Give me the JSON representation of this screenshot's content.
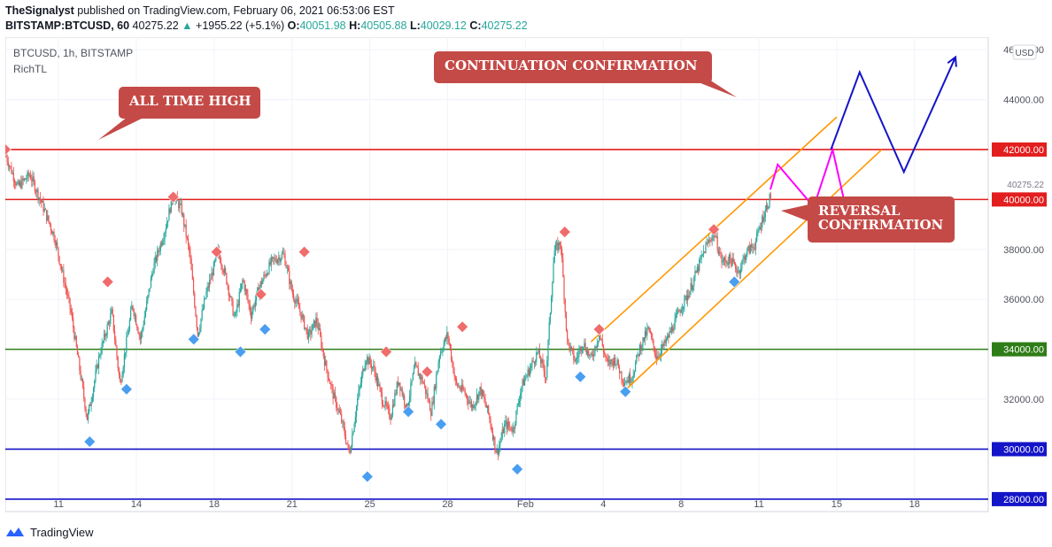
{
  "header": {
    "publisher": "TheSignalyst",
    "published_text": "published on TradingView.com, February 06, 2021 06:53:06 EST",
    "symbol": "BITSTAMP:BTCUSD, 60",
    "last": "40275.22",
    "change": "+1955.22 (+5.1%)",
    "o_label": "O:",
    "o": "40051.98",
    "h_label": "H:",
    "h": "40505.88",
    "l_label": "L:",
    "l": "40029.12",
    "c_label": "C:",
    "c": "40275.22"
  },
  "legend": {
    "symbol": "BTCUSD, 1h, BITSTAMP",
    "indicator": "RichTL"
  },
  "footer": {
    "brand": "TradingView"
  },
  "chart_data": {
    "type": "candlestick",
    "xlabels": [
      "11",
      "14",
      "18",
      "21",
      "25",
      "28",
      "Feb",
      "4",
      "8",
      "11",
      "15",
      "18"
    ],
    "yticks": [
      "28000.00",
      "30000.00",
      "32000.00",
      "34000.00",
      "36000.00",
      "38000.00",
      "40000.00",
      "42000.00",
      "44000.00",
      "46000.00"
    ],
    "ylim": [
      27500,
      46500
    ],
    "currency_label": "USD",
    "last_price_label": "40275.22",
    "levels": [
      {
        "value": 42000,
        "label": "42000.00",
        "color": "#e31e1e"
      },
      {
        "value": 40000,
        "label": "40000.00",
        "color": "#e31e1e"
      },
      {
        "value": 34000,
        "label": "34000.00",
        "color": "#2f7d18"
      },
      {
        "value": 30000,
        "label": "30000.00",
        "color": "#1414c8"
      },
      {
        "value": 28000,
        "label": "28000.00",
        "color": "#1414c8"
      }
    ],
    "price_path": [
      [
        0,
        41800
      ],
      [
        1.5,
        40500
      ],
      [
        3,
        41000
      ],
      [
        4.5,
        39800
      ],
      [
        6,
        38500
      ],
      [
        8,
        35500
      ],
      [
        10,
        31200
      ],
      [
        11.5,
        33800
      ],
      [
        13,
        35500
      ],
      [
        14,
        32600
      ],
      [
        15.5,
        35800
      ],
      [
        16.5,
        34400
      ],
      [
        18,
        37200
      ],
      [
        19.5,
        38800
      ],
      [
        20.5,
        40200
      ],
      [
        21.5,
        39600
      ],
      [
        22.5,
        37800
      ],
      [
        23.5,
        34600
      ],
      [
        24.5,
        36200
      ],
      [
        26,
        37900
      ],
      [
        27,
        36800
      ],
      [
        28,
        35200
      ],
      [
        29,
        36800
      ],
      [
        30,
        35400
      ],
      [
        31,
        36500
      ],
      [
        32.5,
        37500
      ],
      [
        34,
        37800
      ],
      [
        35,
        36300
      ],
      [
        36,
        35500
      ],
      [
        37,
        34500
      ],
      [
        38,
        35200
      ],
      [
        39,
        33500
      ],
      [
        40,
        32200
      ],
      [
        41,
        31200
      ],
      [
        42,
        29800
      ],
      [
        43,
        32000
      ],
      [
        44,
        33700
      ],
      [
        45,
        33200
      ],
      [
        46,
        32000
      ],
      [
        47,
        31300
      ],
      [
        48,
        32800
      ],
      [
        49,
        31600
      ],
      [
        50,
        33300
      ],
      [
        51,
        32700
      ],
      [
        52,
        31500
      ],
      [
        53,
        33800
      ],
      [
        54,
        34600
      ],
      [
        55,
        32600
      ],
      [
        56,
        32300
      ],
      [
        57,
        31700
      ],
      [
        58,
        32400
      ],
      [
        59,
        31400
      ],
      [
        60,
        29800
      ],
      [
        61,
        31000
      ],
      [
        62,
        30800
      ],
      [
        63,
        32500
      ],
      [
        64,
        33200
      ],
      [
        65,
        33900
      ],
      [
        66,
        32900
      ],
      [
        67,
        37900
      ],
      [
        67.8,
        38300
      ],
      [
        68.6,
        34300
      ],
      [
        69.6,
        33500
      ],
      [
        70.5,
        34300
      ],
      [
        71.5,
        33600
      ],
      [
        72.5,
        34600
      ],
      [
        73.5,
        33400
      ],
      [
        74.5,
        33600
      ],
      [
        75.5,
        32700
      ],
      [
        76.5,
        32900
      ],
      [
        77.5,
        34100
      ],
      [
        78.5,
        34800
      ],
      [
        79.5,
        33700
      ],
      [
        80.5,
        34200
      ],
      [
        81.5,
        34900
      ],
      [
        82.5,
        35700
      ],
      [
        83.5,
        36300
      ],
      [
        84.5,
        37200
      ],
      [
        85.5,
        38100
      ],
      [
        86.5,
        38700
      ],
      [
        87.5,
        37500
      ],
      [
        88.5,
        37600
      ],
      [
        89.5,
        37100
      ],
      [
        90.5,
        37900
      ],
      [
        91.5,
        38200
      ],
      [
        92.5,
        39300
      ],
      [
        93.5,
        40200
      ]
    ],
    "resistance_markers": [
      [
        0,
        42000
      ],
      [
        12.5,
        36700
      ],
      [
        20.5,
        40100
      ],
      [
        25.8,
        37900
      ],
      [
        31.2,
        36200
      ],
      [
        36.5,
        37900
      ],
      [
        46.5,
        33900
      ],
      [
        51.5,
        33100
      ],
      [
        55.8,
        34900
      ],
      [
        68.3,
        38700
      ],
      [
        72.5,
        34800
      ],
      [
        86.5,
        38800
      ]
    ],
    "support_markers": [
      [
        10.3,
        30300
      ],
      [
        14.8,
        32400
      ],
      [
        23,
        34400
      ],
      [
        28.7,
        33900
      ],
      [
        31.7,
        34800
      ],
      [
        44.2,
        28900
      ],
      [
        49.2,
        31500
      ],
      [
        53.2,
        31000
      ],
      [
        62.5,
        29200
      ],
      [
        70.2,
        32900
      ],
      [
        75.7,
        32300
      ],
      [
        89,
        36700
      ]
    ],
    "channel_lines": [
      {
        "from": [
          71.5,
          34300
        ],
        "to": [
          101.5,
          43300
        ]
      },
      {
        "from": [
          75.8,
          32400
        ],
        "to": [
          107,
          42000
        ]
      }
    ],
    "blue_projection": [
      [
        100.8,
        42000
      ],
      [
        104.3,
        45100
      ],
      [
        109.7,
        41100
      ],
      [
        116,
        45700
      ]
    ],
    "magenta_projection": [
      [
        93.4,
        40400
      ],
      [
        94.3,
        41400
      ],
      [
        98.7,
        39700
      ],
      [
        101,
        42000
      ],
      [
        103.2,
        38800
      ]
    ],
    "reversal_box": {
      "x0": 97.8,
      "x1": 107.8,
      "y0": 39250,
      "y1": 39700
    },
    "annotations": [
      {
        "text": "ALL TIME HIGH",
        "x": 132,
        "y": 56
      },
      {
        "text": "CONTINUATION CONFIRMATION",
        "x": 485,
        "y": 16
      },
      {
        "text": "REVERSAL",
        "x": 910,
        "y": 182
      },
      {
        "text": "CONFIRMATION",
        "x": 910,
        "y": 182
      }
    ],
    "colors": {
      "bull": "#26a69a",
      "bear": "#ef5350",
      "resistance_marker": "#f06b6b",
      "support_marker": "#4a9ef0",
      "channel": "#ff9800",
      "projection_blue": "#1414c8",
      "projection_magenta": "#ff00ff",
      "callout": "#c44a47"
    }
  }
}
